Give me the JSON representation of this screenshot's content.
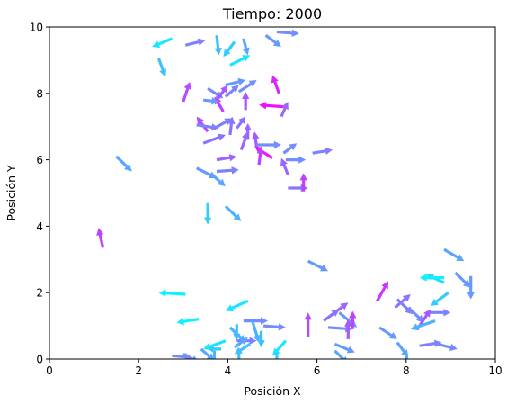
{
  "chart_data": {
    "type": "quiver",
    "title": "Tiempo: 2000",
    "xlabel": "Posición X",
    "ylabel": "Posición Y",
    "xlim": [
      0,
      10
    ],
    "ylim": [
      0,
      10
    ],
    "xticks": [
      "0",
      "2",
      "4",
      "6",
      "8",
      "10"
    ],
    "yticks": [
      "0",
      "2",
      "4",
      "6",
      "8",
      "10"
    ],
    "grid": false,
    "colormap": "cool",
    "arrows": [
      {
        "x": 2.75,
        "y": 9.65,
        "u": -0.45,
        "v": -0.25,
        "c": 0.1
      },
      {
        "x": 3.05,
        "y": 9.45,
        "u": 0.45,
        "v": 0.15,
        "c": 0.5
      },
      {
        "x": 3.75,
        "y": 9.75,
        "u": 0.05,
        "v": -0.6,
        "c": 0.25
      },
      {
        "x": 4.15,
        "y": 9.55,
        "u": -0.25,
        "v": -0.45,
        "c": 0.2
      },
      {
        "x": 4.35,
        "y": 9.65,
        "u": 0.1,
        "v": -0.5,
        "c": 0.35
      },
      {
        "x": 4.85,
        "y": 9.75,
        "u": 0.35,
        "v": -0.35,
        "c": 0.4
      },
      {
        "x": 5.1,
        "y": 9.85,
        "u": 0.5,
        "v": -0.05,
        "c": 0.45
      },
      {
        "x": 2.45,
        "y": 9.05,
        "u": 0.15,
        "v": -0.55,
        "c": 0.25
      },
      {
        "x": 4.05,
        "y": 8.85,
        "u": 0.45,
        "v": 0.3,
        "c": 0.1
      },
      {
        "x": 5.15,
        "y": 8.0,
        "u": -0.15,
        "v": 0.55,
        "c": 0.85
      },
      {
        "x": 3.0,
        "y": 7.75,
        "u": 0.15,
        "v": 0.6,
        "c": 0.7
      },
      {
        "x": 3.55,
        "y": 8.15,
        "u": 0.35,
        "v": -0.3,
        "c": 0.45
      },
      {
        "x": 3.7,
        "y": 7.7,
        "u": 0.3,
        "v": 0.55,
        "c": 0.65
      },
      {
        "x": 3.95,
        "y": 7.9,
        "u": 0.3,
        "v": 0.35,
        "c": 0.5
      },
      {
        "x": 4.25,
        "y": 8.05,
        "u": 0.4,
        "v": 0.35,
        "c": 0.45
      },
      {
        "x": 3.95,
        "y": 8.25,
        "u": 0.45,
        "v": 0.15,
        "c": 0.4
      },
      {
        "x": 3.9,
        "y": 7.45,
        "u": -0.2,
        "v": 0.45,
        "c": 0.75
      },
      {
        "x": 3.45,
        "y": 7.8,
        "u": 0.35,
        "v": -0.05,
        "c": 0.4
      },
      {
        "x": 4.4,
        "y": 7.5,
        "u": 0.0,
        "v": 0.55,
        "c": 0.65
      },
      {
        "x": 5.25,
        "y": 7.6,
        "u": -0.55,
        "v": 0.05,
        "c": 0.95
      },
      {
        "x": 5.2,
        "y": 7.3,
        "u": 0.15,
        "v": 0.45,
        "c": 0.6
      },
      {
        "x": 3.55,
        "y": 6.85,
        "u": -0.25,
        "v": 0.45,
        "c": 0.7
      },
      {
        "x": 3.3,
        "y": 7.05,
        "u": 0.5,
        "v": -0.1,
        "c": 0.5
      },
      {
        "x": 3.7,
        "y": 6.95,
        "u": 0.4,
        "v": 0.3,
        "c": 0.5
      },
      {
        "x": 3.45,
        "y": 6.5,
        "u": 0.5,
        "v": 0.25,
        "c": 0.55
      },
      {
        "x": 4.05,
        "y": 6.75,
        "u": 0.05,
        "v": 0.55,
        "c": 0.55
      },
      {
        "x": 4.3,
        "y": 6.3,
        "u": 0.15,
        "v": 0.55,
        "c": 0.6
      },
      {
        "x": 4.45,
        "y": 6.6,
        "u": 0.0,
        "v": 0.5,
        "c": 0.6
      },
      {
        "x": 4.65,
        "y": 6.35,
        "u": -0.05,
        "v": 0.5,
        "c": 0.65
      },
      {
        "x": 4.2,
        "y": 6.95,
        "u": 0.2,
        "v": 0.35,
        "c": 0.55
      },
      {
        "x": 4.65,
        "y": 6.45,
        "u": 0.55,
        "v": 0.0,
        "c": 0.45
      },
      {
        "x": 5.0,
        "y": 6.05,
        "u": -0.4,
        "v": 0.35,
        "c": 0.9
      },
      {
        "x": 4.7,
        "y": 5.85,
        "u": 0.05,
        "v": 0.55,
        "c": 0.75
      },
      {
        "x": 5.3,
        "y": 6.0,
        "u": 0.45,
        "v": 0.0,
        "c": 0.45
      },
      {
        "x": 5.25,
        "y": 6.2,
        "u": 0.3,
        "v": 0.3,
        "c": 0.45
      },
      {
        "x": 5.9,
        "y": 6.2,
        "u": 0.45,
        "v": 0.1,
        "c": 0.5
      },
      {
        "x": 5.35,
        "y": 5.55,
        "u": -0.15,
        "v": 0.5,
        "c": 0.6
      },
      {
        "x": 5.35,
        "y": 5.15,
        "u": 0.45,
        "v": 0.0,
        "c": 0.55
      },
      {
        "x": 5.7,
        "y": 5.05,
        "u": 0.0,
        "v": 0.55,
        "c": 0.75
      },
      {
        "x": 3.75,
        "y": 6.0,
        "u": 0.45,
        "v": 0.1,
        "c": 0.6
      },
      {
        "x": 3.75,
        "y": 5.65,
        "u": 0.5,
        "v": 0.05,
        "c": 0.5
      },
      {
        "x": 3.3,
        "y": 5.75,
        "u": 0.45,
        "v": -0.3,
        "c": 0.4
      },
      {
        "x": 3.65,
        "y": 5.55,
        "u": 0.3,
        "v": -0.35,
        "c": 0.35
      },
      {
        "x": 1.5,
        "y": 6.1,
        "u": 0.35,
        "v": -0.45,
        "c": 0.35
      },
      {
        "x": 3.55,
        "y": 4.7,
        "u": 0.0,
        "v": -0.65,
        "c": 0.2
      },
      {
        "x": 3.95,
        "y": 4.6,
        "u": 0.35,
        "v": -0.45,
        "c": 0.3
      },
      {
        "x": 1.2,
        "y": 3.35,
        "u": -0.1,
        "v": 0.6,
        "c": 0.75
      },
      {
        "x": 5.8,
        "y": 2.95,
        "u": 0.45,
        "v": -0.3,
        "c": 0.4
      },
      {
        "x": 8.85,
        "y": 3.3,
        "u": 0.45,
        "v": -0.35,
        "c": 0.35
      },
      {
        "x": 9.45,
        "y": 2.5,
        "u": 0.0,
        "v": -0.7,
        "c": 0.4
      },
      {
        "x": 9.1,
        "y": 2.6,
        "u": 0.35,
        "v": -0.45,
        "c": 0.4
      },
      {
        "x": 8.85,
        "y": 2.3,
        "u": -0.4,
        "v": 0.25,
        "c": 0.15
      },
      {
        "x": 8.95,
        "y": 2.0,
        "u": -0.4,
        "v": -0.4,
        "c": 0.2
      },
      {
        "x": 8.85,
        "y": 2.45,
        "u": -0.55,
        "v": 0.0,
        "c": 0.05
      },
      {
        "x": 7.35,
        "y": 1.75,
        "u": 0.25,
        "v": 0.6,
        "c": 0.8
      },
      {
        "x": 7.75,
        "y": 1.55,
        "u": 0.35,
        "v": 0.4,
        "c": 0.55
      },
      {
        "x": 7.8,
        "y": 1.8,
        "u": 0.35,
        "v": -0.45,
        "c": 0.5
      },
      {
        "x": 8.05,
        "y": 1.55,
        "u": 0.35,
        "v": -0.45,
        "c": 0.45
      },
      {
        "x": 8.45,
        "y": 1.4,
        "u": 0.55,
        "v": 0.0,
        "c": 0.5
      },
      {
        "x": 8.25,
        "y": 0.9,
        "u": 0.3,
        "v": 0.6,
        "c": 0.65
      },
      {
        "x": 8.65,
        "y": 1.15,
        "u": -0.55,
        "v": -0.25,
        "c": 0.3
      },
      {
        "x": 7.4,
        "y": 0.95,
        "u": 0.4,
        "v": -0.35,
        "c": 0.4
      },
      {
        "x": 7.8,
        "y": 0.5,
        "u": 0.25,
        "v": -0.45,
        "c": 0.35
      },
      {
        "x": 8.3,
        "y": 0.4,
        "u": 0.5,
        "v": 0.1,
        "c": 0.5
      },
      {
        "x": 8.7,
        "y": 0.45,
        "u": 0.45,
        "v": -0.15,
        "c": 0.45
      },
      {
        "x": 8.0,
        "y": 0.1,
        "u": 0.1,
        "v": -0.6,
        "c": 0.3
      },
      {
        "x": 6.3,
        "y": 1.3,
        "u": 0.4,
        "v": 0.4,
        "c": 0.6
      },
      {
        "x": 6.15,
        "y": 1.15,
        "u": 0.35,
        "v": 0.35,
        "c": 0.55
      },
      {
        "x": 6.5,
        "y": 1.4,
        "u": 0.4,
        "v": -0.45,
        "c": 0.4
      },
      {
        "x": 6.25,
        "y": 0.95,
        "u": 0.55,
        "v": -0.05,
        "c": 0.45
      },
      {
        "x": 6.8,
        "y": 0.9,
        "u": 0.0,
        "v": 0.55,
        "c": 0.75
      },
      {
        "x": 6.7,
        "y": 0.6,
        "u": 0.0,
        "v": 0.6,
        "c": 0.65
      },
      {
        "x": 6.4,
        "y": 0.45,
        "u": 0.45,
        "v": -0.25,
        "c": 0.4
      },
      {
        "x": 6.4,
        "y": 0.25,
        "u": 0.3,
        "v": -0.4,
        "c": 0.35
      },
      {
        "x": 5.8,
        "y": 0.65,
        "u": 0.0,
        "v": 0.75,
        "c": 0.7
      },
      {
        "x": 4.35,
        "y": 1.15,
        "u": 0.55,
        "v": 0.0,
        "c": 0.45
      },
      {
        "x": 3.05,
        "y": 1.95,
        "u": -0.6,
        "v": 0.05,
        "c": 0.05
      },
      {
        "x": 4.45,
        "y": 1.75,
        "u": -0.5,
        "v": -0.3,
        "c": 0.1
      },
      {
        "x": 3.35,
        "y": 1.2,
        "u": -0.5,
        "v": -0.1,
        "c": 0.05
      },
      {
        "x": 4.2,
        "y": 1.05,
        "u": 0.0,
        "v": -0.5,
        "c": 0.25
      },
      {
        "x": 4.05,
        "y": 0.95,
        "u": 0.35,
        "v": -0.45,
        "c": 0.3
      },
      {
        "x": 4.55,
        "y": 1.15,
        "u": 0.15,
        "v": -0.65,
        "c": 0.3
      },
      {
        "x": 4.75,
        "y": 0.85,
        "u": 0.0,
        "v": -0.5,
        "c": 0.25
      },
      {
        "x": 4.2,
        "y": 0.55,
        "u": 0.45,
        "v": 0.0,
        "c": 0.5
      },
      {
        "x": 4.15,
        "y": 0.35,
        "u": 0.3,
        "v": 0.3,
        "c": 0.35
      },
      {
        "x": 4.5,
        "y": 0.45,
        "u": -0.35,
        "v": -0.3,
        "c": 0.25
      },
      {
        "x": 3.95,
        "y": 0.55,
        "u": -0.5,
        "v": -0.25,
        "c": 0.1
      },
      {
        "x": 3.7,
        "y": 0.25,
        "u": 0.0,
        "v": -0.5,
        "c": 0.3
      },
      {
        "x": 3.4,
        "y": 0.3,
        "u": 0.3,
        "v": -0.35,
        "c": 0.35
      },
      {
        "x": 3.0,
        "y": 0.15,
        "u": 0.35,
        "v": -0.25,
        "c": 0.4
      },
      {
        "x": 2.75,
        "y": 0.1,
        "u": 0.45,
        "v": -0.05,
        "c": 0.45
      },
      {
        "x": 4.25,
        "y": 0.25,
        "u": 0.0,
        "v": -0.45,
        "c": 0.25
      },
      {
        "x": 4.8,
        "y": 1.0,
        "u": 0.5,
        "v": -0.05,
        "c": 0.45
      },
      {
        "x": 5.3,
        "y": 0.55,
        "u": -0.3,
        "v": -0.45,
        "c": 0.1
      },
      {
        "x": 5.1,
        "y": 0.2,
        "u": 0.0,
        "v": -0.5,
        "c": 0.2
      },
      {
        "x": 3.85,
        "y": 0.3,
        "u": -0.3,
        "v": 0.0,
        "c": 0.2
      }
    ]
  }
}
